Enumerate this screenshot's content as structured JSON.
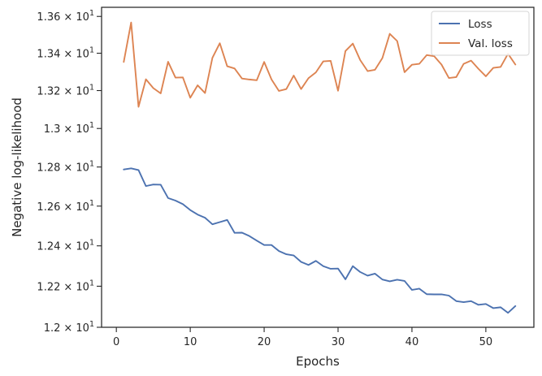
{
  "chart_data": {
    "type": "line",
    "xlabel": "Epochs",
    "ylabel": "Negative log-likelihood",
    "xlim": [
      -2,
      56.5
    ],
    "ylim": [
      12.0,
      13.65
    ],
    "y_scale": "log",
    "x_ticks": [
      0,
      10,
      20,
      30,
      40,
      50
    ],
    "y_ticks": [
      {
        "value": 12.0,
        "mantissa": "1.2"
      },
      {
        "value": 12.2,
        "mantissa": "1.22"
      },
      {
        "value": 12.4,
        "mantissa": "1.24"
      },
      {
        "value": 12.6,
        "mantissa": "1.26"
      },
      {
        "value": 12.8,
        "mantissa": "1.28"
      },
      {
        "value": 13.0,
        "mantissa": "1.3"
      },
      {
        "value": 13.2,
        "mantissa": "1.32"
      },
      {
        "value": 13.4,
        "mantissa": "1.34"
      },
      {
        "value": 13.6,
        "mantissa": "1.36"
      }
    ],
    "y_tick_multiplier": "× 10",
    "y_tick_exponent": "1",
    "grid": false,
    "legend_position": "top-right",
    "x": [
      1,
      2,
      3,
      4,
      5,
      6,
      7,
      8,
      9,
      10,
      11,
      12,
      13,
      14,
      15,
      16,
      17,
      18,
      19,
      20,
      21,
      22,
      23,
      24,
      25,
      26,
      27,
      28,
      29,
      30,
      31,
      32,
      33,
      34,
      35,
      36,
      37,
      38,
      39,
      40,
      41,
      42,
      43,
      44,
      45,
      46,
      47,
      48,
      49,
      50,
      51,
      52,
      53,
      54
    ],
    "series": [
      {
        "name": "Loss",
        "color": "#4c72b0",
        "values": [
          12.787,
          12.793,
          12.784,
          12.702,
          12.71,
          12.709,
          12.641,
          12.628,
          12.61,
          12.58,
          12.557,
          12.541,
          12.508,
          12.519,
          12.53,
          12.465,
          12.466,
          12.449,
          12.426,
          12.404,
          12.404,
          12.374,
          12.358,
          12.352,
          12.32,
          12.305,
          12.325,
          12.299,
          12.286,
          12.287,
          12.234,
          12.299,
          12.27,
          12.252,
          12.262,
          12.233,
          12.224,
          12.232,
          12.226,
          12.182,
          12.188,
          12.161,
          12.16,
          12.16,
          12.154,
          12.127,
          12.122,
          12.127,
          12.109,
          12.113,
          12.093,
          12.097,
          12.07,
          12.103
        ]
      },
      {
        "name": "Val. loss",
        "color": "#dd8452",
        "values": [
          13.353,
          13.567,
          13.114,
          13.26,
          13.213,
          13.185,
          13.354,
          13.269,
          13.27,
          13.162,
          13.228,
          13.187,
          13.375,
          13.454,
          13.33,
          13.318,
          13.264,
          13.259,
          13.255,
          13.353,
          13.259,
          13.198,
          13.208,
          13.28,
          13.208,
          13.266,
          13.297,
          13.356,
          13.359,
          13.199,
          13.412,
          13.452,
          13.363,
          13.304,
          13.311,
          13.374,
          13.505,
          13.466,
          13.298,
          13.338,
          13.343,
          13.39,
          13.384,
          13.339,
          13.267,
          13.272,
          13.343,
          13.36,
          13.316,
          13.276,
          13.321,
          13.326,
          13.397,
          13.339
        ]
      }
    ]
  }
}
